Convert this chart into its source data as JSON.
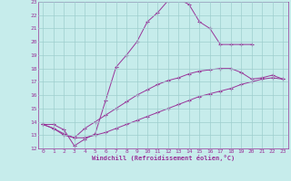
{
  "xlabel": "Windchill (Refroidissement éolien,°C)",
  "bg_color": "#c6eceb",
  "grid_color": "#9ecece",
  "line_color": "#993399",
  "xlim": [
    -0.5,
    23.5
  ],
  "ylim": [
    12,
    23
  ],
  "xticks": [
    0,
    1,
    2,
    3,
    4,
    5,
    6,
    7,
    8,
    9,
    10,
    11,
    12,
    13,
    14,
    15,
    16,
    17,
    18,
    19,
    20,
    21,
    22,
    23
  ],
  "yticks": [
    12,
    13,
    14,
    15,
    16,
    17,
    18,
    19,
    20,
    21,
    22,
    23
  ],
  "line1_x": [
    0,
    1,
    2,
    3,
    4,
    5,
    6,
    7,
    8,
    9,
    10,
    11,
    12,
    13,
    14,
    15,
    16,
    17,
    18,
    19,
    20
  ],
  "line1_y": [
    13.8,
    13.8,
    13.4,
    12.2,
    12.7,
    13.1,
    15.6,
    18.1,
    19.0,
    20.0,
    21.5,
    22.2,
    23.1,
    23.2,
    22.8,
    21.5,
    21.0,
    19.8,
    19.8,
    19.8,
    19.8
  ],
  "line2_x": [
    0,
    1,
    2,
    3,
    4,
    5,
    6,
    7,
    8,
    9,
    10,
    11,
    12,
    13,
    14,
    15,
    16,
    17,
    18,
    19,
    20,
    21,
    22,
    23
  ],
  "line2_y": [
    13.8,
    13.5,
    13.1,
    12.8,
    13.5,
    14.0,
    14.5,
    15.0,
    15.5,
    16.0,
    16.4,
    16.8,
    17.1,
    17.3,
    17.6,
    17.8,
    17.9,
    18.0,
    18.0,
    17.7,
    17.2,
    17.3,
    17.5,
    17.2
  ],
  "line3_x": [
    0,
    1,
    2,
    3,
    4,
    5,
    6,
    7,
    8,
    9,
    10,
    11,
    12,
    13,
    14,
    15,
    16,
    17,
    18,
    19,
    20,
    21,
    22,
    23
  ],
  "line3_y": [
    13.8,
    13.5,
    13.0,
    12.8,
    12.8,
    13.0,
    13.2,
    13.5,
    13.8,
    14.1,
    14.4,
    14.7,
    15.0,
    15.3,
    15.6,
    15.9,
    16.1,
    16.3,
    16.5,
    16.8,
    17.0,
    17.2,
    17.3,
    17.2
  ]
}
